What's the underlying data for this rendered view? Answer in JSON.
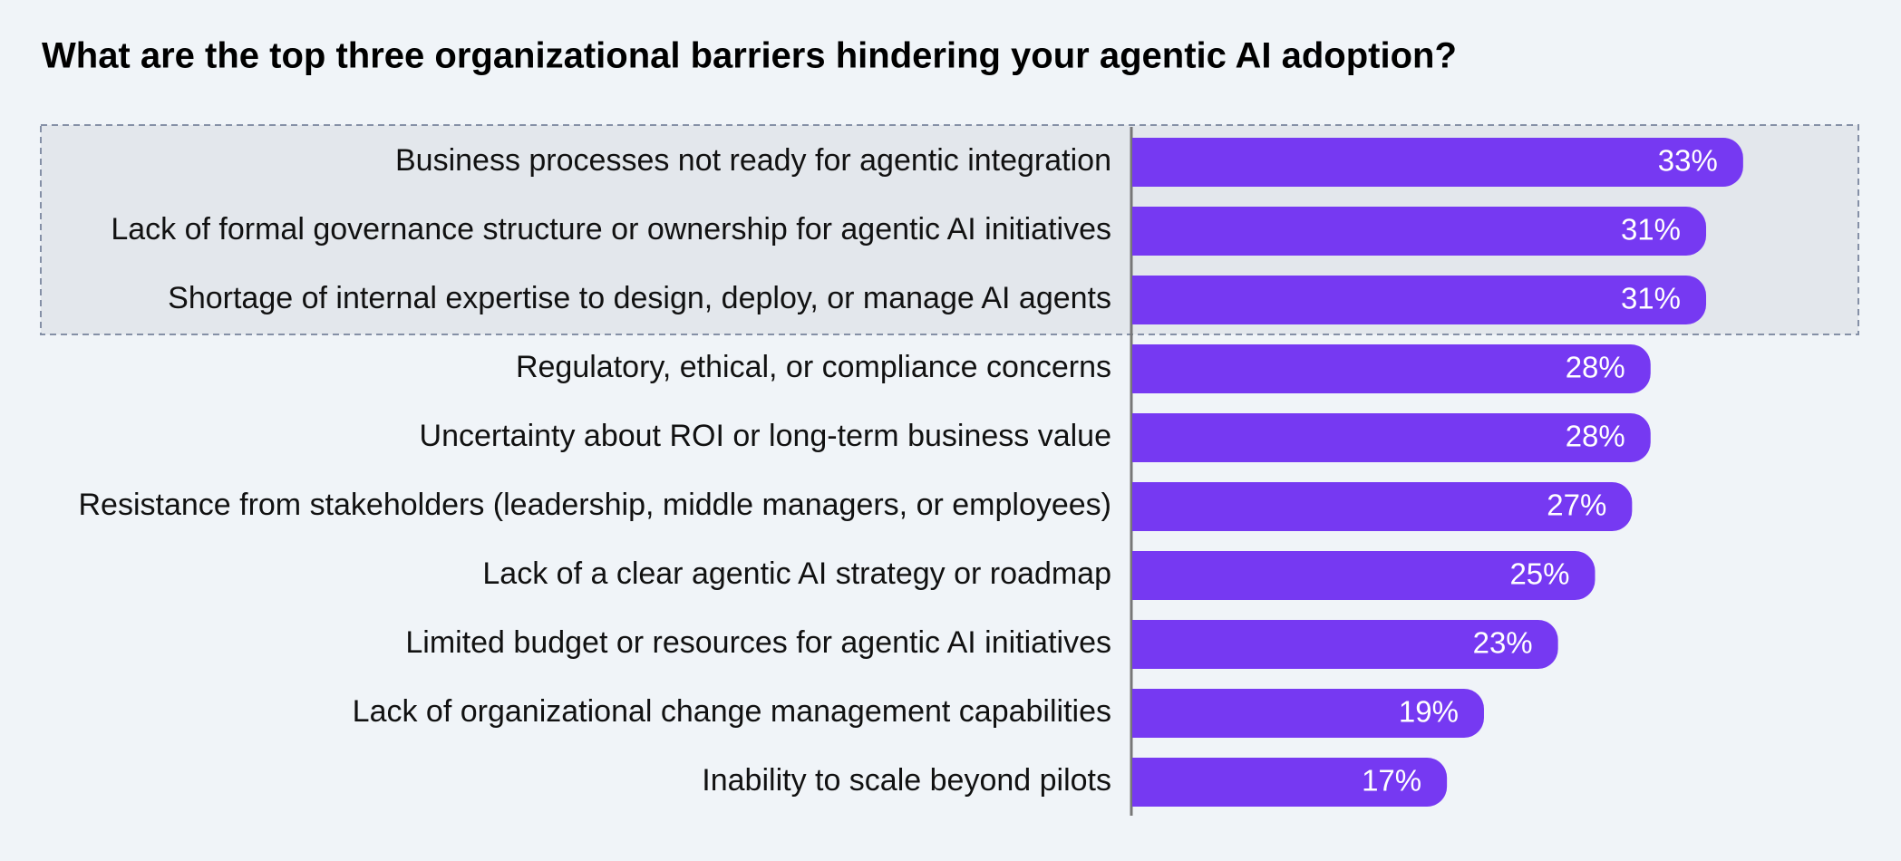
{
  "chart_data": {
    "type": "bar",
    "orientation": "horizontal",
    "title": "What are the top three organizational barriers hindering your agentic AI adoption?",
    "categories": [
      "Business processes not ready for agentic integration",
      "Lack of formal governance structure or ownership for agentic AI initiatives",
      "Shortage of internal expertise to design, deploy, or manage AI agents",
      "Regulatory, ethical, or compliance concerns",
      "Uncertainty about ROI or long-term business value",
      "Resistance from stakeholders (leadership, middle managers, or employees)",
      "Lack of a clear agentic AI strategy or roadmap",
      "Limited budget or resources for agentic AI initiatives",
      "Lack of organizational change management capabilities",
      "Inability to scale beyond pilots"
    ],
    "values": [
      33,
      31,
      31,
      28,
      28,
      27,
      25,
      23,
      19,
      17
    ],
    "value_labels": [
      "33%",
      "31%",
      "31%",
      "28%",
      "28%",
      "27%",
      "25%",
      "23%",
      "19%",
      "17%"
    ],
    "color": "#7639f2"
  }
}
